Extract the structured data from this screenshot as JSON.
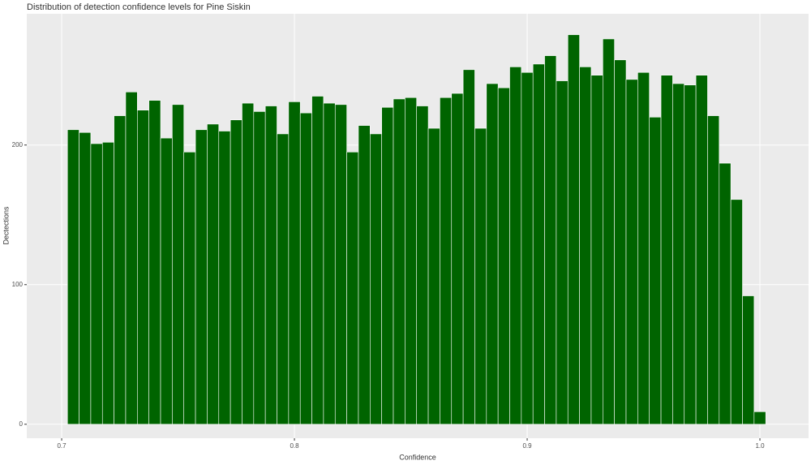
{
  "chart_data": {
    "type": "histogram",
    "title": "Distribution of detection confidence levels for Pine Siskin",
    "x_label": "Confidence",
    "y_label": "Dectections",
    "bins": [
      0.7025,
      0.7075,
      0.7125,
      0.7175,
      0.7225,
      0.7275,
      0.7325,
      0.7375,
      0.7425,
      0.7475,
      0.7525,
      0.7575,
      0.7625,
      0.7675,
      0.7725,
      0.7775,
      0.7825,
      0.7875,
      0.7925,
      0.7975,
      0.8025,
      0.8075,
      0.8125,
      0.8175,
      0.8225,
      0.8275,
      0.8325,
      0.8375,
      0.8425,
      0.8475,
      0.8525,
      0.8575,
      0.8625,
      0.8675,
      0.8725,
      0.8775,
      0.8825,
      0.8875,
      0.8925,
      0.8975,
      0.9025,
      0.9075,
      0.9125,
      0.9175,
      0.9225,
      0.9275,
      0.9325,
      0.9375,
      0.9425,
      0.9475,
      0.9525,
      0.9575,
      0.9625,
      0.9675,
      0.9725,
      0.9775,
      0.9825,
      0.9875,
      0.9925,
      0.9975,
      1.0025
    ],
    "values": [
      211,
      209,
      201,
      202,
      221,
      238,
      225,
      232,
      205,
      229,
      195,
      211,
      215,
      210,
      218,
      230,
      224,
      228,
      208,
      231,
      223,
      235,
      230,
      229,
      195,
      214,
      208,
      227,
      233,
      234,
      228,
      212,
      234,
      237,
      254,
      212,
      244,
      241,
      256,
      252,
      258,
      264,
      246,
      279,
      256,
      250,
      276,
      261,
      247,
      252,
      220,
      250,
      244,
      243,
      250,
      221,
      187,
      161,
      92,
      9
    ],
    "color": "#006400",
    "xlim": [
      0.685,
      1.0209
    ],
    "xticks": [
      0.7,
      0.8,
      0.9,
      {
        "value": 1,
        "label": "1.0"
      }
    ],
    "ylim": [
      -10,
      294
    ],
    "yticks": [
      0,
      100,
      200
    ],
    "grid": true
  }
}
